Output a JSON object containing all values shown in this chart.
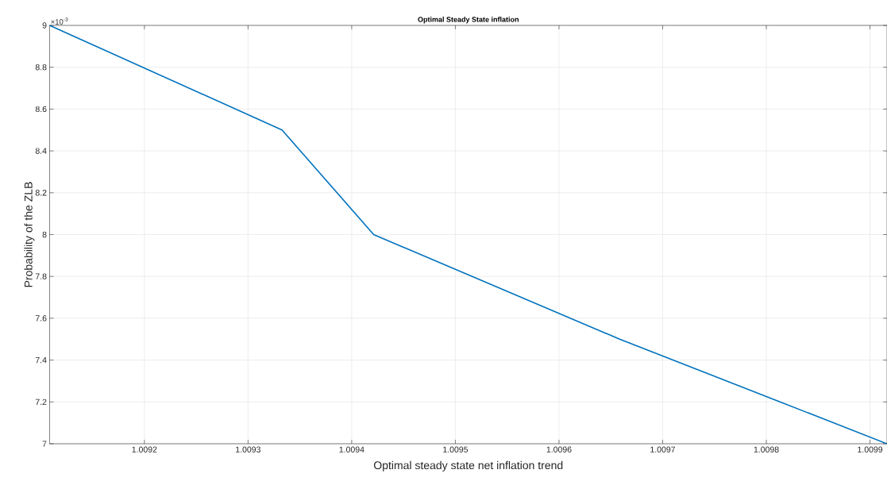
{
  "chart_data": {
    "type": "line",
    "title": "Optimal Steady State inflation",
    "xlabel": "Optimal steady state net inflation trend",
    "ylabel": "Probability of the ZLB",
    "x": [
      1.0091086,
      1.0093328,
      1.0094212,
      1.0096585,
      1.0099164
    ],
    "series": [
      {
        "color": "#0072bd",
        "values": [
          9,
          8.5,
          8,
          7.5,
          7
        ]
      }
    ],
    "xlim": [
      1.0091086,
      1.0099164
    ],
    "ylim": [
      7,
      9
    ],
    "xticks": [
      1.0092,
      1.0093,
      1.0094,
      1.0095,
      1.0096,
      1.0097,
      1.0098,
      1.0099
    ],
    "yticks": [
      7,
      7.2,
      7.4,
      7.6,
      7.8,
      8,
      8.2,
      8.4,
      8.6,
      8.8,
      9
    ],
    "annotations": [
      "×10$^{-3}$"
    ],
    "grid": true,
    "line_style": "solid",
    "marker": "none"
  }
}
